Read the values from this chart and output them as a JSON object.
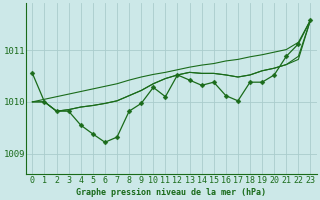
{
  "bg_color": "#cce8e8",
  "grid_color": "#aacccc",
  "line_color": "#1a6b1a",
  "xlabel": "Graphe pression niveau de la mer (hPa)",
  "xlim_min": -0.5,
  "xlim_max": 23.5,
  "ylim_min": 1008.6,
  "ylim_max": 1011.9,
  "yticks": [
    1009,
    1010,
    1011
  ],
  "xticks": [
    0,
    1,
    2,
    3,
    4,
    5,
    6,
    7,
    8,
    9,
    10,
    11,
    12,
    13,
    14,
    15,
    16,
    17,
    18,
    19,
    20,
    21,
    22,
    23
  ],
  "series_jagged": [
    1010.55,
    1010.0,
    1009.82,
    1009.82,
    1009.55,
    1009.38,
    1009.22,
    1009.32,
    1009.82,
    1009.97,
    1010.28,
    1010.1,
    1010.52,
    1010.42,
    1010.32,
    1010.38,
    1010.12,
    1010.02,
    1010.38,
    1010.38,
    1010.52,
    1010.88,
    1011.12,
    1011.58
  ],
  "series_diagonal": [
    1010.0,
    1010.05,
    1010.1,
    1010.15,
    1010.2,
    1010.25,
    1010.3,
    1010.35,
    1010.42,
    1010.48,
    1010.53,
    1010.57,
    1010.62,
    1010.67,
    1010.71,
    1010.74,
    1010.79,
    1010.82,
    1010.87,
    1010.91,
    1010.96,
    1011.01,
    1011.15,
    1011.58
  ],
  "series_smooth1": [
    1010.0,
    1010.0,
    1009.82,
    1009.85,
    1009.9,
    1009.93,
    1009.97,
    1010.02,
    1010.12,
    1010.22,
    1010.35,
    1010.45,
    1010.52,
    1010.57,
    1010.55,
    1010.55,
    1010.52,
    1010.48,
    1010.52,
    1010.6,
    1010.65,
    1010.72,
    1010.82,
    1011.58
  ],
  "series_smooth2": [
    1010.0,
    1010.0,
    1009.82,
    1009.85,
    1009.9,
    1009.93,
    1009.97,
    1010.02,
    1010.12,
    1010.22,
    1010.35,
    1010.45,
    1010.52,
    1010.57,
    1010.55,
    1010.55,
    1010.52,
    1010.48,
    1010.52,
    1010.6,
    1010.65,
    1010.72,
    1010.88,
    1011.58
  ],
  "marker_size": 2.5,
  "xlabel_fontsize": 6,
  "tick_fontsize": 6,
  "ytick_fontsize": 6.5
}
